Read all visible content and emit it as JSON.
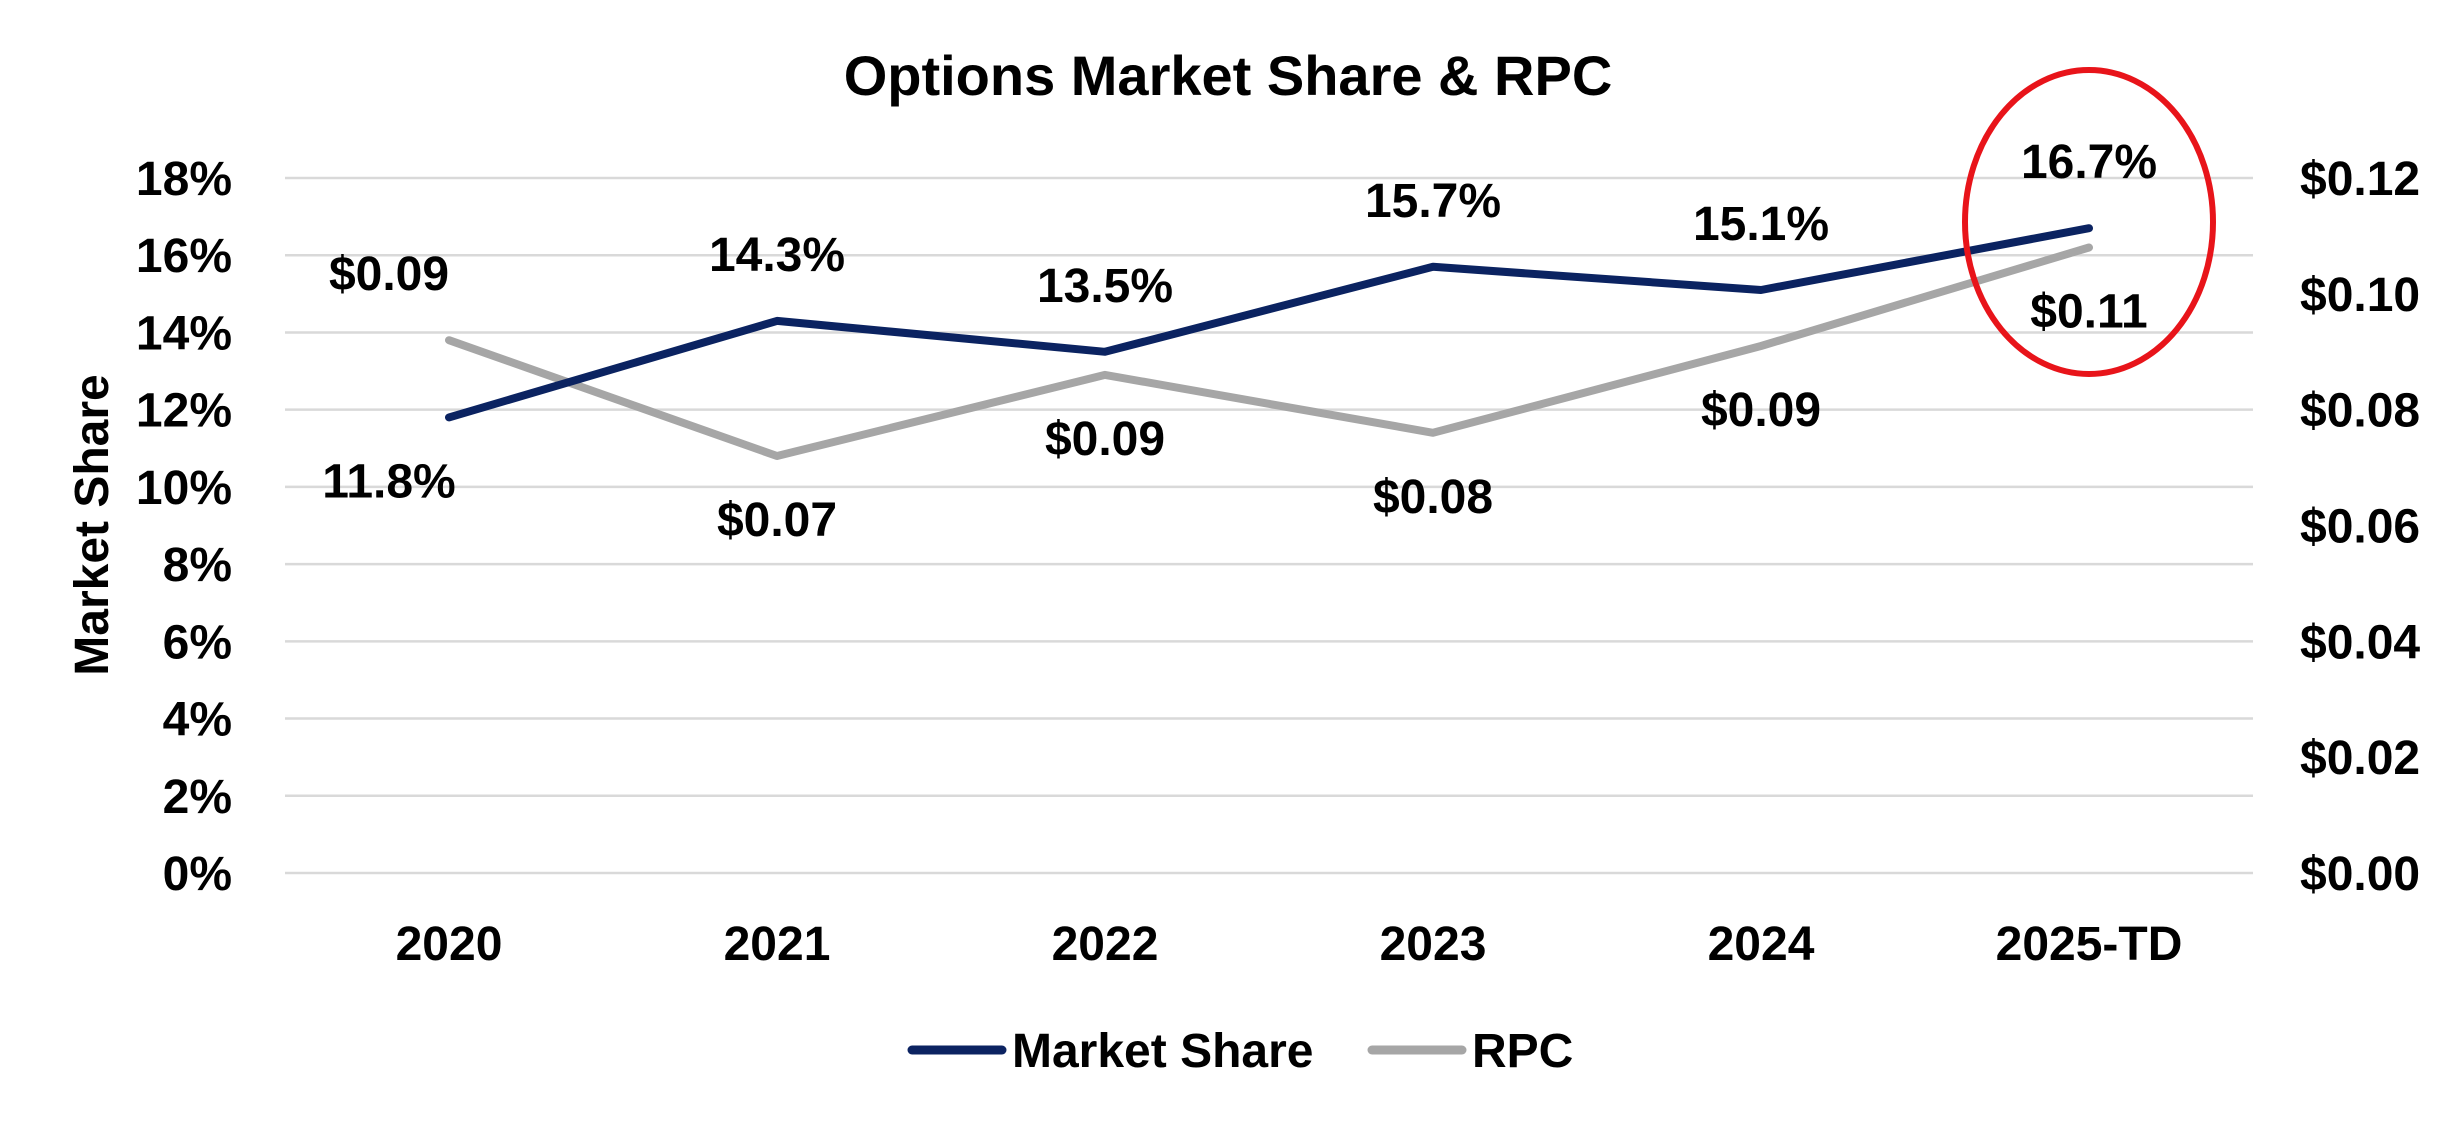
{
  "chart_data": {
    "type": "line",
    "title": "Options Market Share & RPC",
    "xlabel": "",
    "ylabel": "Market Share",
    "y2label": "",
    "categories": [
      "2020",
      "2021",
      "2022",
      "2023",
      "2024",
      "2025-TD"
    ],
    "ylim": [
      0,
      18
    ],
    "y_ticks": [
      0,
      2,
      4,
      6,
      8,
      10,
      12,
      14,
      16,
      18
    ],
    "y_tick_labels": [
      "0%",
      "2%",
      "4%",
      "6%",
      "8%",
      "10%",
      "12%",
      "14%",
      "16%",
      "18%"
    ],
    "y2lim": [
      0,
      0.12
    ],
    "y2_ticks": [
      0,
      0.02,
      0.04,
      0.06,
      0.08,
      0.1,
      0.12
    ],
    "y2_tick_labels": [
      "$0.00",
      "$0.02",
      "$0.04",
      "$0.06",
      "$0.08",
      "$0.10",
      "$0.12"
    ],
    "grid": true,
    "legend_position": "bottom",
    "series": [
      {
        "name": "Market Share",
        "axis": "left",
        "color": "#0b2361",
        "values": [
          11.8,
          14.3,
          13.5,
          15.7,
          15.1,
          16.7
        ],
        "labels": [
          "11.8%",
          "14.3%",
          "13.5%",
          "15.7%",
          "15.1%",
          "16.7%"
        ]
      },
      {
        "name": "RPC",
        "axis": "right",
        "color": "#a6a6a6",
        "values": [
          0.092,
          0.072,
          0.086,
          0.076,
          0.091,
          0.108
        ],
        "labels": [
          "$0.09",
          "$0.07",
          "$0.09",
          "$0.08",
          "$0.09",
          "$0.11"
        ]
      }
    ],
    "annotation": {
      "type": "ellipse-highlight",
      "category": "2025-TD",
      "color": "#e8141a"
    }
  }
}
